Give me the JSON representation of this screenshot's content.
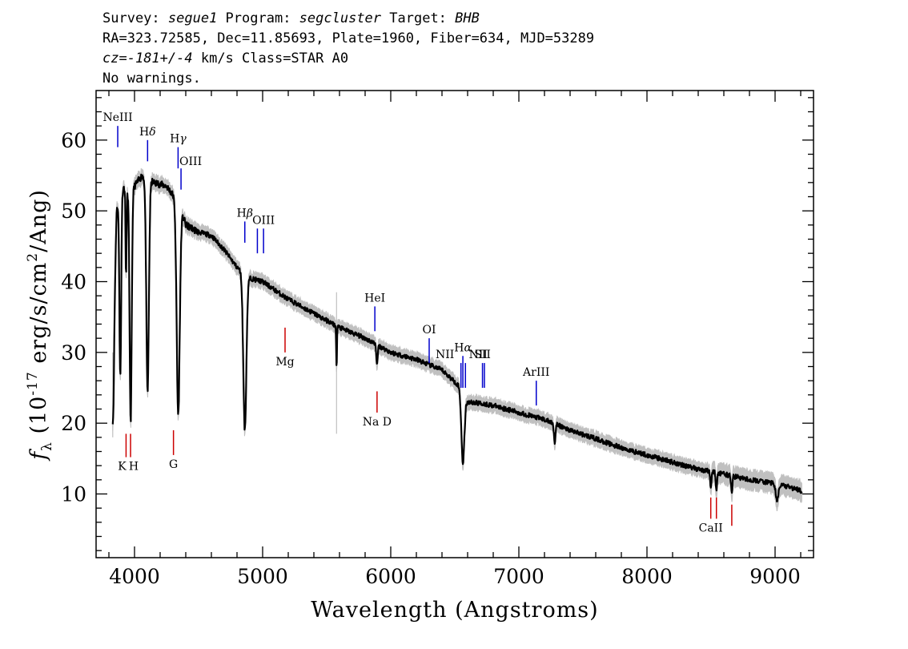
{
  "header": {
    "line1": {
      "survey_label": "Survey: ",
      "survey": "segue1",
      "program_label": " Program: ",
      "program": "segcluster",
      "target_label": " Target: ",
      "target": "BHB"
    },
    "line2": "RA=323.72585, Dec=11.85693, Plate=1960, Fiber=634, MJD=53289",
    "line3": {
      "cz_label": "cz=",
      "cz_value": "-181+/-4",
      "rest": " km/s Class=STAR A0"
    },
    "line4": "No warnings."
  },
  "chart_data": {
    "type": "line",
    "xlabel": "Wavelength (Angstroms)",
    "ylabel": {
      "symbol": "f",
      "subscript": "λ",
      "text1": " (10",
      "exp1": "-17",
      "text2": " erg/s/cm",
      "exp2": "2",
      "text3": "/Ang)"
    },
    "xlim": [
      3700,
      9300
    ],
    "ylim": [
      1,
      67
    ],
    "x_ticks": [
      4000,
      5000,
      6000,
      7000,
      8000,
      9000
    ],
    "x_tick_labels": [
      "4000",
      "5000",
      "6000",
      "7000",
      "8000",
      "9000"
    ],
    "y_ticks": [
      10,
      20,
      30,
      40,
      50,
      60
    ],
    "y_tick_labels": [
      "10",
      "20",
      "30",
      "40",
      "50",
      "60"
    ],
    "grid": false,
    "continuum": [
      [
        3830,
        26
      ],
      [
        3860,
        50
      ],
      [
        3900,
        53.5
      ],
      [
        3960,
        52.5
      ],
      [
        4020,
        54
      ],
      [
        4060,
        55
      ],
      [
        4150,
        54
      ],
      [
        4250,
        53.5
      ],
      [
        4350,
        51
      ],
      [
        4400,
        48
      ],
      [
        4500,
        47
      ],
      [
        4600,
        46.5
      ],
      [
        4700,
        44.5
      ],
      [
        4800,
        42
      ],
      [
        4900,
        40.5
      ],
      [
        5000,
        40
      ],
      [
        5200,
        37.5
      ],
      [
        5400,
        35.5
      ],
      [
        5600,
        33.5
      ],
      [
        5800,
        32
      ],
      [
        6000,
        30
      ],
      [
        6200,
        29
      ],
      [
        6400,
        27.5
      ],
      [
        6550,
        25
      ],
      [
        6600,
        23
      ],
      [
        6700,
        22.8
      ],
      [
        6800,
        22.5
      ],
      [
        7000,
        21.5
      ],
      [
        7200,
        20.5
      ],
      [
        7400,
        19
      ],
      [
        7600,
        17.8
      ],
      [
        7800,
        16.5
      ],
      [
        8000,
        15.5
      ],
      [
        8200,
        14.5
      ],
      [
        8400,
        13.5
      ],
      [
        8600,
        12.8
      ],
      [
        8800,
        12
      ],
      [
        9000,
        11.5
      ],
      [
        9200,
        10.5
      ]
    ],
    "absorption_features": [
      {
        "center": 3835,
        "depth": 8,
        "width": 6
      },
      {
        "center": 3889,
        "depth": 26,
        "width": 7
      },
      {
        "center": 3934,
        "depth": 12,
        "width": 4
      },
      {
        "center": 3970,
        "depth": 33,
        "width": 8
      },
      {
        "center": 4102,
        "depth": 30,
        "width": 10
      },
      {
        "center": 4341,
        "depth": 30,
        "width": 12
      },
      {
        "center": 4861,
        "depth": 22,
        "width": 12
      },
      {
        "center": 5577,
        "depth": 6,
        "width": 3
      },
      {
        "center": 5893,
        "depth": 3,
        "width": 5
      },
      {
        "center": 6563,
        "depth": 10,
        "width": 12
      },
      {
        "center": 7280,
        "depth": 2.5,
        "width": 6
      },
      {
        "center": 8498,
        "depth": 2,
        "width": 5
      },
      {
        "center": 8542,
        "depth": 2.5,
        "width": 5
      },
      {
        "center": 8662,
        "depth": 2.5,
        "width": 5
      },
      {
        "center": 9015,
        "depth": 2.5,
        "width": 10
      }
    ],
    "line_markers": [
      {
        "label": "NeIII",
        "wavelength": 3869,
        "color": "#0000cc",
        "y_top": 62,
        "y_bottom": 59
      },
      {
        "label": "Hδ",
        "wavelength": 4102,
        "color": "#0000cc",
        "y_top": 60,
        "y_bottom": 57
      },
      {
        "label": "Hγ",
        "wavelength": 4340,
        "color": "#0000cc",
        "y_top": 59,
        "y_bottom": 56
      },
      {
        "label": "OIII",
        "wavelength": 4363,
        "color": "#0000cc",
        "y_top": 56,
        "y_bottom": 53
      },
      {
        "label": "Hβ",
        "wavelength": 4861,
        "color": "#0000cc",
        "y_top": 48.5,
        "y_bottom": 45.5
      },
      {
        "label": "",
        "wavelength": 4959,
        "color": "#0000cc",
        "y_top": 47.5,
        "y_bottom": 44
      },
      {
        "label": "OIII",
        "wavelength": 5007,
        "color": "#0000cc",
        "y_top": 47.5,
        "y_bottom": 44
      },
      {
        "label": "Mg",
        "wavelength": 5175,
        "color": "#cc0000",
        "y_top": 33.5,
        "y_bottom": 30
      },
      {
        "label": "HeI",
        "wavelength": 5876,
        "color": "#0000cc",
        "y_top": 36.5,
        "y_bottom": 33
      },
      {
        "label": "Na D",
        "wavelength": 5893,
        "color": "#cc0000",
        "y_top": 24.5,
        "y_bottom": 21.5
      },
      {
        "label": "OI",
        "wavelength": 6300,
        "color": "#0000cc",
        "y_top": 32,
        "y_bottom": 28.5
      },
      {
        "label": "NII",
        "wavelength": 6548,
        "color": "#0000cc",
        "y_top": 28.5,
        "y_bottom": 25
      },
      {
        "label": "Hα",
        "wavelength": 6563,
        "color": "#0000cc",
        "y_top": 29.5,
        "y_bottom": 25
      },
      {
        "label": "NII",
        "wavelength": 6583,
        "color": "#0000cc",
        "y_top": 28.5,
        "y_bottom": 25
      },
      {
        "label": "SII",
        "wavelength": 6716,
        "color": "#0000cc",
        "y_top": 28.5,
        "y_bottom": 25
      },
      {
        "label": "",
        "wavelength": 6731,
        "color": "#0000cc",
        "y_top": 28.5,
        "y_bottom": 25
      },
      {
        "label": "ArIII",
        "wavelength": 7136,
        "color": "#0000cc",
        "y_top": 26,
        "y_bottom": 22.5
      },
      {
        "label": "K",
        "wavelength": 3934,
        "color": "#cc0000",
        "y_top": 18.5,
        "y_bottom": 15.2
      },
      {
        "label": "H",
        "wavelength": 3969,
        "color": "#cc0000",
        "y_top": 18.5,
        "y_bottom": 15.2
      },
      {
        "label": "G",
        "wavelength": 4304,
        "color": "#cc0000",
        "y_top": 19,
        "y_bottom": 15.5
      },
      {
        "label": "CaII",
        "wavelength": 8498,
        "color": "#cc0000",
        "y_top": 9.5,
        "y_bottom": 6.5
      },
      {
        "label": "",
        "wavelength": 8542,
        "color": "#cc0000",
        "y_top": 9.5,
        "y_bottom": 6.5
      },
      {
        "label": "",
        "wavelength": 8662,
        "color": "#cc0000",
        "y_top": 8.5,
        "y_bottom": 5.5
      }
    ],
    "colors": {
      "flux": "#000000",
      "error_band": "#c0c0c0",
      "emission_marker": "#0000cc",
      "absorption_marker": "#cc0000"
    }
  }
}
